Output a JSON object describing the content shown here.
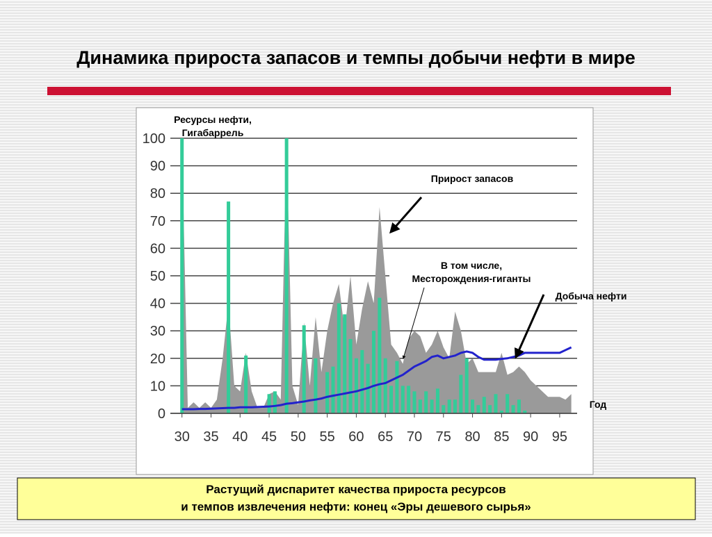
{
  "slide": {
    "title": "Динамика прироста запасов и темпы добычи нефти в мире",
    "footer": [
      "Растущий диспаритет качества прироста ресурсов",
      "и темпов извлечения нефти: конец «Эры дешевого сырья»"
    ]
  },
  "chart_data": {
    "type": "combo",
    "ylabel": [
      "Ресурсы нефти,",
      "Гигабаррель"
    ],
    "xlabel": "Год",
    "annotations": [
      "В том числе,"
    ],
    "x": [
      30,
      31,
      32,
      33,
      34,
      35,
      36,
      37,
      38,
      39,
      40,
      41,
      42,
      43,
      44,
      45,
      46,
      47,
      48,
      49,
      50,
      51,
      52,
      53,
      54,
      55,
      56,
      57,
      58,
      59,
      60,
      61,
      62,
      63,
      64,
      65,
      66,
      67,
      68,
      69,
      70,
      71,
      72,
      73,
      74,
      75,
      76,
      77,
      78,
      79,
      80,
      81,
      82,
      83,
      84,
      85,
      86,
      87,
      88,
      89,
      90,
      91,
      92,
      93,
      94,
      95,
      96,
      97
    ],
    "series": [
      {
        "name": "Прирост запасов",
        "type": "area",
        "color": "#9a9a9a",
        "values": [
          100,
          2,
          4,
          2,
          4,
          2,
          5,
          20,
          40,
          10,
          8,
          22,
          8,
          2,
          2,
          7,
          8,
          5,
          100,
          10,
          3,
          33,
          10,
          35,
          15,
          30,
          40,
          47,
          30,
          50,
          25,
          38,
          48,
          40,
          75,
          50,
          25,
          22,
          18,
          27,
          30,
          28,
          22,
          25,
          30,
          24,
          20,
          37,
          30,
          18,
          20,
          15,
          15,
          15,
          15,
          22,
          14,
          15,
          17,
          15,
          12,
          10,
          8,
          6,
          6,
          6,
          5,
          7
        ]
      },
      {
        "name": "Месторождения-гиганты",
        "type": "bar",
        "color": "#33cc99",
        "values": [
          100,
          0,
          0,
          0,
          0,
          0,
          0,
          0,
          77,
          0,
          0,
          21,
          0,
          0,
          0,
          7,
          8,
          0,
          100,
          0,
          0,
          32,
          0,
          20,
          0,
          15,
          17,
          40,
          36,
          27,
          20,
          23,
          18,
          30,
          42,
          20,
          10,
          19,
          10,
          10,
          8,
          5,
          8,
          5,
          9,
          3,
          5,
          5,
          14,
          20,
          5,
          3,
          6,
          3,
          7,
          1,
          7,
          3,
          5,
          1,
          0,
          0,
          0,
          0,
          0,
          0,
          0,
          0
        ]
      },
      {
        "name": "Добыча нефти",
        "type": "line",
        "color": "#2222cc",
        "values": [
          1.5,
          1.5,
          1.5,
          1.6,
          1.6,
          1.7,
          1.8,
          1.9,
          2,
          2,
          2.2,
          2.2,
          2.2,
          2.3,
          2.4,
          2.5,
          2.7,
          3,
          3.5,
          3.7,
          4,
          4.3,
          4.7,
          5,
          5.4,
          6,
          6.4,
          6.8,
          7.2,
          7.6,
          8,
          8.6,
          9.2,
          10,
          10.6,
          11,
          12,
          13,
          14,
          15.5,
          17,
          18,
          19,
          20.5,
          21,
          20,
          20.5,
          21,
          22,
          22.5,
          22,
          20.5,
          19.5,
          19.5,
          19.5,
          19.8,
          20,
          20.5,
          21,
          22,
          22,
          22,
          22,
          22,
          22,
          22,
          23,
          24
        ]
      }
    ],
    "xlim": [
      28,
      98
    ],
    "ylim": [
      0,
      100
    ],
    "xticks": [
      30,
      35,
      40,
      45,
      50,
      55,
      60,
      65,
      70,
      75,
      80,
      85,
      90,
      95
    ],
    "yticks": [
      0,
      10,
      20,
      30,
      40,
      50,
      60,
      70,
      80,
      90,
      100
    ],
    "grid": true
  }
}
